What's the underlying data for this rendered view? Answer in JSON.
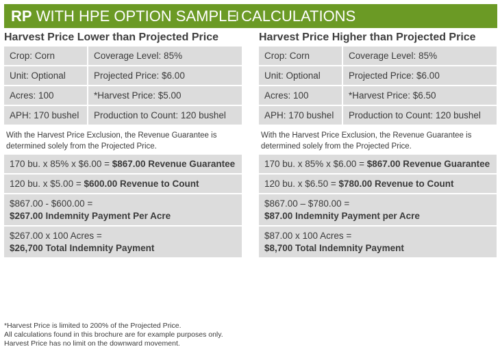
{
  "banner": {
    "title_bold": "RP",
    "title_rest": "WITH HPE OPTION SAMPLE CALCULATIONS"
  },
  "left": {
    "heading": "Harvest Price Lower than Projected Price",
    "rows": [
      {
        "a": "Crop: Corn",
        "b": "Coverage Level: 85%"
      },
      {
        "a": "Unit: Optional",
        "b": "Projected Price: $6.00"
      },
      {
        "a": "Acres: 100",
        "b": "*Harvest Price: $5.00"
      },
      {
        "a": "APH: 170 bushel",
        "b": "Production to Count: 120 bushel"
      }
    ],
    "note": "With the Harvest Price Exclusion, the Revenue Guarantee is determined solely from the Projected Price.",
    "calc1": {
      "expr": "170 bu. x 85% x $6.00 = ",
      "result": "$867.00 Revenue Guarantee"
    },
    "calc2": {
      "expr": "120 bu. x $5.00 = ",
      "result": "$600.00 Revenue to Count"
    },
    "calc3": {
      "expr": "$867.00 - $600.00 =",
      "result": "$267.00 Indemnity Payment Per Acre"
    },
    "calc4": {
      "expr": "$267.00 x 100 Acres =",
      "result": "$26,700 Total Indemnity Payment"
    }
  },
  "right": {
    "heading": "Harvest Price Higher than Projected Price",
    "rows": [
      {
        "a": "Crop: Corn",
        "b": "Coverage Level: 85%"
      },
      {
        "a": "Unit: Optional",
        "b": "Projected Price: $6.00"
      },
      {
        "a": "Acres: 100",
        "b": "*Harvest Price: $6.50"
      },
      {
        "a": "APH: 170 bushel",
        "b": "Production to Count: 120 bushel"
      }
    ],
    "note": "With the Harvest Price Exclusion, the Revenue Guarantee is determined solely from the Projected Price.",
    "calc1": {
      "expr": "170 bu. x 85% x $6.00 = ",
      "result": "$867.00 Revenue Guarantee"
    },
    "calc2": {
      "expr": "120 bu. x $6.50 = ",
      "result": "$780.00 Revenue to Count"
    },
    "calc3": {
      "expr": "$867.00 – $780.00 =",
      "result": "$87.00 Indemnity Payment per Acre"
    },
    "calc4": {
      "expr": "$87.00 x 100 Acres =",
      "result": "$8,700 Total Indemnity Payment"
    }
  },
  "footer": {
    "line1": "*Harvest Price is limited to 200% of the Projected Price.",
    "line2": "All calculations found in this brochure are for example purposes only.",
    "line3": "Harvest Price has no limit on the downward movement."
  },
  "colors": {
    "banner": "#6b9a25",
    "cell": "#dcdcdc"
  },
  "icons": {
    "cursor": "text-cursor-icon"
  }
}
